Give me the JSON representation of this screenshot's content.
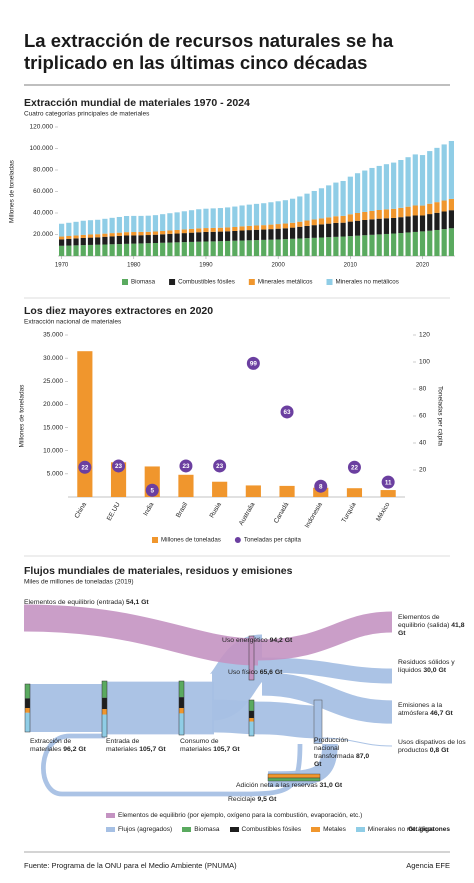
{
  "title": "La extracción de recursos naturales se ha triplicado en las últimas cinco décadas",
  "chart_data": [
    {
      "type": "bar",
      "stacked": true,
      "title": "Extracción mundial de materiales 1970 - 2024",
      "subtitle": "Cuatro categorías principales de materiales",
      "ylabel": "Millones de toneladas",
      "x": [
        1970,
        1971,
        1972,
        1973,
        1974,
        1975,
        1976,
        1977,
        1978,
        1979,
        1980,
        1981,
        1982,
        1983,
        1984,
        1985,
        1986,
        1987,
        1988,
        1989,
        1990,
        1991,
        1992,
        1993,
        1994,
        1995,
        1996,
        1997,
        1998,
        1999,
        2000,
        2001,
        2002,
        2003,
        2004,
        2005,
        2006,
        2007,
        2008,
        2009,
        2010,
        2011,
        2012,
        2013,
        2014,
        2015,
        2016,
        2017,
        2018,
        2019,
        2020,
        2021,
        2022,
        2023,
        2024
      ],
      "xlim": [
        1969.5,
        2024.5
      ],
      "xticks": [
        1970,
        1980,
        1990,
        2000,
        2010,
        2020
      ],
      "ylim": [
        0,
        120000
      ],
      "yticks": [
        {
          "value": 20000,
          "label": "20.000"
        },
        {
          "value": 40000,
          "label": "40.000"
        },
        {
          "value": 60000,
          "label": "60.000"
        },
        {
          "value": 80000,
          "label": "80.000"
        },
        {
          "value": 100000,
          "label": "100.000"
        },
        {
          "value": 120000,
          "label": "120.000"
        }
      ],
      "legend": "bottom",
      "series": [
        {
          "name": "Biomasa",
          "color": "#5aaa5f",
          "values": [
            9500,
            9700,
            9900,
            10100,
            10300,
            10500,
            10700,
            10900,
            11100,
            11300,
            11500,
            11700,
            11900,
            12100,
            12300,
            12500,
            12700,
            12900,
            13100,
            13300,
            13500,
            13600,
            13800,
            14000,
            14200,
            14400,
            14600,
            14800,
            15000,
            15200,
            15400,
            15700,
            16000,
            16300,
            16600,
            16900,
            17200,
            17500,
            17800,
            18100,
            18500,
            18900,
            19300,
            19700,
            20100,
            20500,
            20900,
            21400,
            21900,
            22400,
            22900,
            23500,
            24200,
            25000,
            25800
          ]
        },
        {
          "name": "Combustibles fósiles",
          "color": "#1e1e1e",
          "values": [
            6000,
            6300,
            6500,
            6700,
            6800,
            6900,
            7200,
            7400,
            7600,
            7800,
            7700,
            7600,
            7600,
            7700,
            7900,
            8100,
            8200,
            8400,
            8600,
            8800,
            8900,
            8900,
            8900,
            9000,
            9100,
            9300,
            9500,
            9600,
            9600,
            9800,
            10000,
            10100,
            10400,
            10900,
            11400,
            11800,
            12200,
            12600,
            13000,
            12900,
            13500,
            13900,
            14200,
            14400,
            14600,
            14600,
            14500,
            14700,
            15000,
            15300,
            14800,
            15500,
            16000,
            16400,
            16800
          ]
        },
        {
          "name": "Minerales metálicos",
          "color": "#f0962d",
          "values": [
            2600,
            2600,
            2700,
            2800,
            2900,
            2900,
            2900,
            3000,
            3000,
            3100,
            3100,
            3100,
            3000,
            3000,
            3100,
            3200,
            3300,
            3400,
            3500,
            3600,
            3600,
            3600,
            3600,
            3600,
            3700,
            3900,
            3900,
            4000,
            4100,
            4200,
            4300,
            4400,
            4500,
            4700,
            5000,
            5300,
            5600,
            5900,
            6200,
            6300,
            6800,
            7200,
            7500,
            7800,
            8100,
            8300,
            8500,
            8700,
            9000,
            9300,
            9200,
            9600,
            9900,
            10200,
            10500
          ]
        },
        {
          "name": "Minerales no metálicos",
          "color": "#8fcde6",
          "values": [
            11900,
            12300,
            12700,
            13200,
            13300,
            13400,
            13800,
            14200,
            14600,
            15000,
            15000,
            14900,
            15000,
            15200,
            15600,
            16000,
            16400,
            16900,
            17400,
            17800,
            18000,
            18200,
            18300,
            18600,
            19000,
            19400,
            19800,
            20100,
            20400,
            20800,
            21200,
            21700,
            22400,
            23500,
            25000,
            26500,
            28000,
            29700,
            31300,
            32500,
            35000,
            37000,
            38500,
            40000,
            41000,
            42000,
            43000,
            44500,
            46000,
            47500,
            47000,
            49000,
            50500,
            52200,
            53900
          ]
        }
      ]
    },
    {
      "type": "bar",
      "title": "Los diez mayores extractores en 2020",
      "subtitle": "Extracción nacional de materiales",
      "ylabel": "Millones de toneladas",
      "y2label": "Toneladas per cápita",
      "categories": [
        "China",
        "EE.UU",
        "India",
        "Brasil",
        "Rusia",
        "Australia",
        "Canadá",
        "Indonesia",
        "Turquía",
        "México"
      ],
      "ylim": [
        0,
        35000
      ],
      "yticks": [
        {
          "value": 5000,
          "label": "5.000"
        },
        {
          "value": 10000,
          "label": "10.000"
        },
        {
          "value": 15000,
          "label": "15.000"
        },
        {
          "value": 20000,
          "label": "20.000"
        },
        {
          "value": 25000,
          "label": "25.000"
        },
        {
          "value": 30000,
          "label": "30.000"
        },
        {
          "value": 35000,
          "label": "35.000"
        }
      ],
      "y2lim": [
        0,
        120
      ],
      "y2ticks": [
        20,
        40,
        60,
        80,
        100,
        120
      ],
      "legend": "bottom",
      "series": [
        {
          "name": "Millones de toneladas",
          "color": "#f0962d",
          "values": [
            31500,
            7500,
            6600,
            4800,
            3300,
            2500,
            2400,
            2000,
            1900,
            1500
          ]
        },
        {
          "name": "Toneladas per cápita",
          "color": "#6b3fa0",
          "axis": "y2",
          "marker": "circle",
          "values": [
            22,
            23,
            5,
            23,
            23,
            99,
            63,
            8,
            22,
            11
          ]
        }
      ]
    },
    {
      "type": "sankey",
      "title": "Flujos mundiales de materiales, residuos y emisiones",
      "subtitle": "Miles de millones de toneladas (2019)",
      "labels": [
        "Elementos de equilibrio (entrada)",
        "Uso energético",
        "Elementos de equilibrio (salida)",
        "Residuos sólidos y líquidos",
        "Uso físico",
        "Emisiones a la atmósfera",
        "Usos dispativos de los productos",
        "Extracción de materiales",
        "Entrada de materiales",
        "Consumo de materiales",
        "Producción nacional transformada",
        "Adición neta a las reservas",
        "Reciclaje"
      ],
      "values": [
        54.1,
        94.2,
        41.8,
        30.0,
        65.6,
        46.7,
        0.8,
        96.2,
        105.7,
        105.7,
        87.0,
        31.0,
        9.5
      ],
      "value_labels": [
        "54,1 Gt",
        "94,2 Gt",
        "41,8 Gt",
        "30,0 Gt",
        "65,6 Gt",
        "46,7 Gt",
        "0,8 Gt",
        "96,2 Gt",
        "105,7 Gt",
        "105,7 Gt",
        "87,0 Gt",
        "31,0 Gt",
        "9,5 Gt"
      ],
      "legend": [
        {
          "name": "Elementos de equilibrio (por ejemplo, oxígeno para la combustión, evaporación, etc.)",
          "color": "#c493c2"
        },
        {
          "name": "Flujos (agregados)",
          "color": "#a6c0e4"
        },
        {
          "name": "Biomasa",
          "color": "#5aaa5f"
        },
        {
          "name": "Combustibles fósiles",
          "color": "#1e1e1e"
        },
        {
          "name": "Metales",
          "color": "#f0962d"
        },
        {
          "name": "Minerales no metálicos",
          "color": "#8fcde6"
        }
      ],
      "note": "Gt: gigatones"
    }
  ],
  "source": "Fuente: Programa de la ONU para el Medio Ambiente (PNUMA)",
  "credit": "Agencia EFE"
}
